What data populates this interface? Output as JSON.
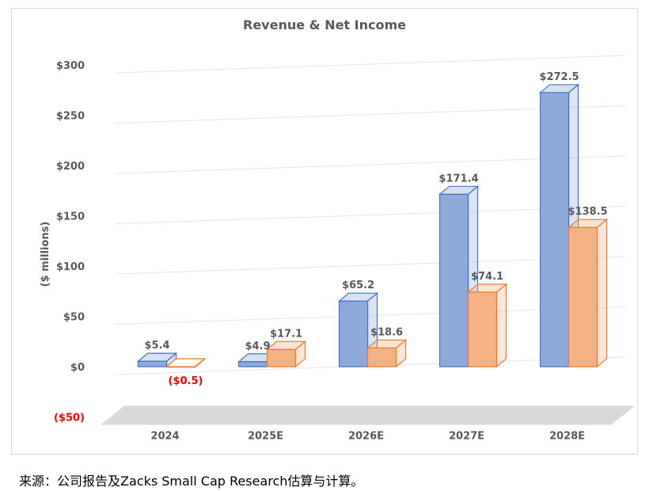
{
  "chart_data": {
    "type": "bar",
    "title": "Revenue & Net Income",
    "ylabel": "($ millions)",
    "categories": [
      "2024",
      "2025E",
      "2026E",
      "2027E",
      "2028E"
    ],
    "series": [
      {
        "values": [
          5.4,
          4.9,
          65.2,
          171.4,
          272.5
        ]
      },
      {
        "values": [
          -0.5,
          17.1,
          18.6,
          74.1,
          138.5
        ]
      }
    ],
    "data_labels": [
      [
        "$5.4",
        "$4.9",
        "$65.2",
        "$171.4",
        "$272.5"
      ],
      [
        "($0.5)",
        "$17.1",
        "$18.6",
        "$74.1",
        "$138.5"
      ]
    ],
    "yticks": [
      300,
      250,
      200,
      150,
      100,
      50,
      0,
      -50
    ],
    "ytick_labels": [
      "$300",
      "$250",
      "$200",
      "$150",
      "$100",
      "$50",
      "$0",
      "($50)"
    ],
    "ylim": [
      -50,
      300
    ],
    "grid": true,
    "legend": "none",
    "colors": {
      "revenue_front": "#8eaadb",
      "revenue_stroke": "#4472c4",
      "income_front": "#f4b183",
      "income_stroke": "#ed7d31",
      "negative_label": "#ff0000",
      "text": "#595959"
    }
  },
  "source_note": "来源：公司报告及Zacks Small Cap Research估算与计算。"
}
